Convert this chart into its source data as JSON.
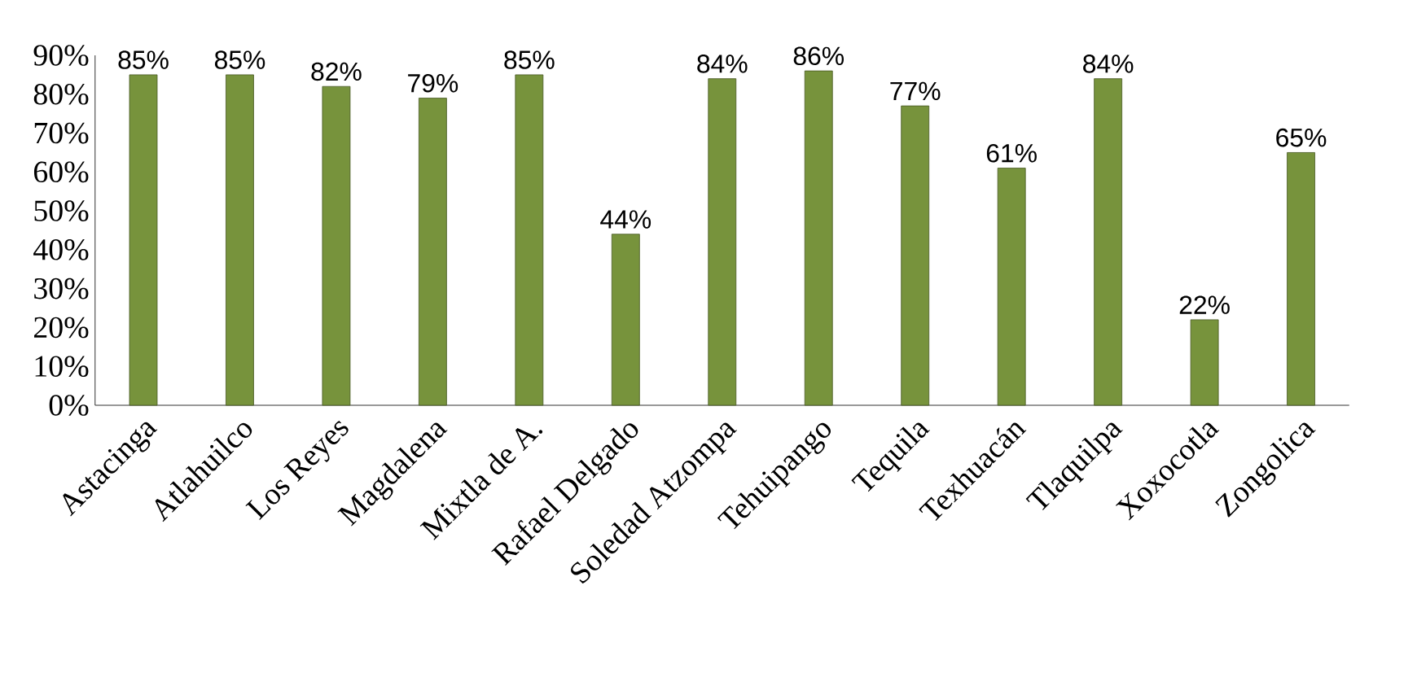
{
  "chart_data": {
    "type": "bar",
    "categories": [
      "Astacinga",
      "Atlahuilco",
      "Los Reyes",
      "Magdalena",
      "Mixtla de A.",
      "Rafael Delgado",
      "Soledad Atzompa",
      "Tehuipango",
      "Tequila",
      "Texhuacán",
      "Tlaquilpa",
      "Xoxocotla",
      "Zongolica"
    ],
    "values": [
      85,
      85,
      82,
      79,
      85,
      44,
      84,
      86,
      77,
      61,
      84,
      22,
      65
    ],
    "value_labels": [
      "85%",
      "85%",
      "82%",
      "79%",
      "85%",
      "44%",
      "84%",
      "86%",
      "77%",
      "61%",
      "84%",
      "22%",
      "65%"
    ],
    "color": "#77933c",
    "ylim": [
      0,
      90
    ],
    "yticks": [
      {
        "value": 0,
        "label": "0%"
      },
      {
        "value": 10,
        "label": "10%"
      },
      {
        "value": 20,
        "label": "20%"
      },
      {
        "value": 30,
        "label": "30%"
      },
      {
        "value": 40,
        "label": "40%"
      },
      {
        "value": 50,
        "label": "50%"
      },
      {
        "value": 60,
        "label": "60%"
      },
      {
        "value": 70,
        "label": "70%"
      },
      {
        "value": 80,
        "label": "80%"
      },
      {
        "value": 90,
        "label": "90%"
      }
    ]
  }
}
